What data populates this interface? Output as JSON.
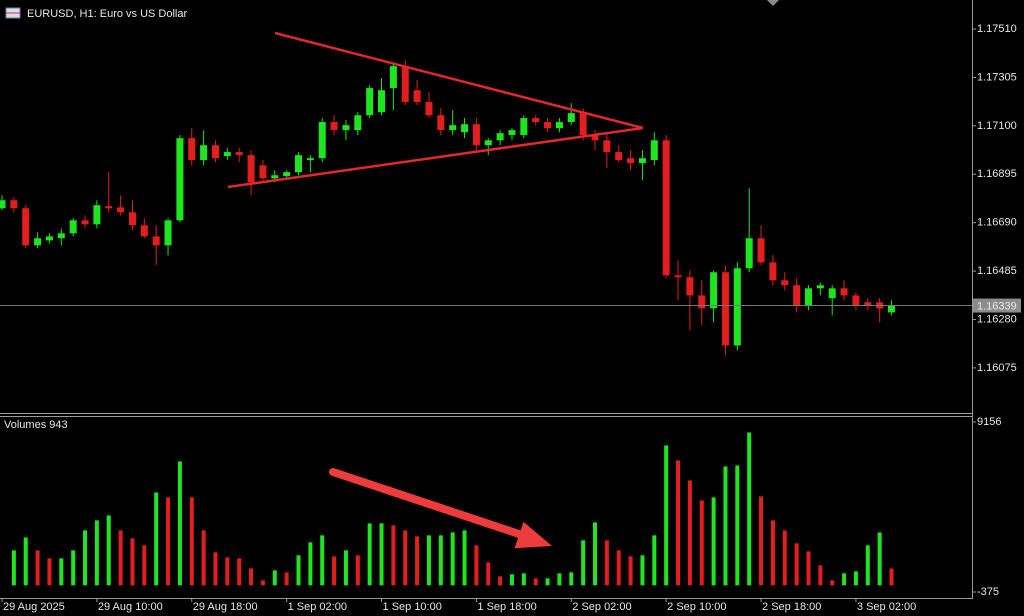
{
  "chart_data": [
    {
      "type": "candlestick",
      "title": "EURUSD, H1:  Euro vs US Dollar",
      "categories": [
        "29 Aug 2025",
        null,
        null,
        null,
        null,
        null,
        null,
        null,
        "29 Aug 10:00",
        null,
        null,
        null,
        null,
        null,
        null,
        null,
        "29 Aug 18:00",
        null,
        null,
        null,
        null,
        null,
        null,
        null,
        "1 Sep 02:00",
        null,
        null,
        null,
        null,
        null,
        null,
        null,
        "1 Sep 10:00",
        null,
        null,
        null,
        null,
        null,
        null,
        null,
        "1 Sep 18:00",
        null,
        null,
        null,
        null,
        null,
        null,
        null,
        "2 Sep 02:00",
        null,
        null,
        null,
        null,
        null,
        null,
        null,
        "2 Sep 10:00",
        null,
        null,
        null,
        null,
        null,
        null,
        null,
        "2 Sep 18:00",
        null,
        null,
        null,
        null,
        null,
        null,
        null,
        "3 Sep 02:00",
        null,
        null,
        null
      ],
      "open": [
        1.16751,
        1.16785,
        1.16751,
        1.16594,
        1.16615,
        1.16624,
        1.16645,
        1.167,
        1.16683,
        1.1676,
        1.16755,
        1.16734,
        1.16679,
        1.16632,
        1.16594,
        1.167,
        1.17048,
        1.16955,
        1.17018,
        1.16972,
        1.16989,
        1.16976,
        1.16933,
        1.16878,
        1.16887,
        1.16904,
        1.16955,
        1.16963,
        1.17116,
        1.17082,
        1.17082,
        1.17145,
        1.17158,
        1.1726,
        1.17353,
        1.17251,
        1.17201,
        1.17145,
        1.17082,
        1.17073,
        1.17107,
        1.17018,
        1.17039,
        1.17061,
        1.17061,
        1.17133,
        1.17116,
        1.1709,
        1.17116,
        1.17154,
        1.17061,
        1.17039,
        1.16989,
        1.16963,
        1.16942,
        1.16955,
        1.17039,
        1.16467,
        1.16459,
        1.16382,
        1.16327,
        1.1648,
        1.1617,
        1.16497,
        1.16624,
        1.16522,
        1.16446,
        1.16425,
        1.1634,
        1.16412,
        1.1637,
        1.16412,
        1.16382,
        1.16353,
        1.16353,
        1.1631
      ],
      "high": [
        1.16806,
        1.16798,
        1.16764,
        1.16649,
        1.16645,
        1.16666,
        1.16709,
        1.16721,
        1.16785,
        1.16904,
        1.16806,
        1.16785,
        1.16709,
        1.16679,
        1.16709,
        1.17061,
        1.1709,
        1.17082,
        1.17039,
        1.17006,
        1.17006,
        1.16997,
        1.16955,
        1.16912,
        1.16912,
        1.16989,
        1.16976,
        1.17133,
        1.17145,
        1.17124,
        1.17158,
        1.17273,
        1.17302,
        1.1737,
        1.17379,
        1.17294,
        1.17243,
        1.17175,
        1.17167,
        1.17133,
        1.17133,
        1.17048,
        1.17082,
        1.1709,
        1.17145,
        1.17145,
        1.17133,
        1.17133,
        1.17196,
        1.17175,
        1.17082,
        1.17073,
        1.17018,
        1.16997,
        1.16997,
        1.17073,
        1.17061,
        1.16531,
        1.16488,
        1.16446,
        1.16488,
        1.16509,
        1.16522,
        1.16836,
        1.16679,
        1.16552,
        1.1648,
        1.16454,
        1.16425,
        1.16437,
        1.16425,
        1.16446,
        1.16395,
        1.1637,
        1.1637,
        1.16361
      ],
      "low": [
        1.16743,
        1.16734,
        1.16582,
        1.16582,
        1.16603,
        1.16594,
        1.16632,
        1.16666,
        1.16666,
        1.16734,
        1.16721,
        1.16658,
        1.16624,
        1.16509,
        1.16552,
        1.16692,
        1.16933,
        1.16933,
        1.16946,
        1.16955,
        1.16946,
        1.16806,
        1.16861,
        1.16861,
        1.1687,
        1.16891,
        1.16904,
        1.16946,
        1.17061,
        1.17039,
        1.17061,
        1.17133,
        1.17145,
        1.17167,
        1.17188,
        1.17188,
        1.17133,
        1.17061,
        1.17061,
        1.17048,
        1.16997,
        1.16976,
        1.17018,
        1.17039,
        1.17048,
        1.17103,
        1.17073,
        1.17073,
        1.17103,
        1.17039,
        1.16997,
        1.16921,
        1.16946,
        1.16912,
        1.1687,
        1.16933,
        1.16454,
        1.16361,
        1.16234,
        1.16255,
        1.16268,
        1.16128,
        1.16149,
        1.1648,
        1.16509,
        1.16425,
        1.16403,
        1.1631,
        1.16319,
        1.16382,
        1.16297,
        1.16361,
        1.16319,
        1.16319,
        1.16268,
        1.16297
      ],
      "close": [
        1.16785,
        1.16751,
        1.16594,
        1.16624,
        1.16632,
        1.16645,
        1.167,
        1.16683,
        1.16764,
        1.16751,
        1.16734,
        1.16679,
        1.16632,
        1.16594,
        1.167,
        1.17048,
        1.16955,
        1.17018,
        1.16963,
        1.16989,
        1.16976,
        1.16861,
        1.16878,
        1.16891,
        1.16904,
        1.16976,
        1.16963,
        1.17116,
        1.17082,
        1.17103,
        1.17145,
        1.1726,
        1.17251,
        1.17353,
        1.17201,
        1.17201,
        1.17145,
        1.17082,
        1.17103,
        1.17107,
        1.17018,
        1.17039,
        1.17069,
        1.17082,
        1.17133,
        1.17116,
        1.1709,
        1.17116,
        1.17154,
        1.17061,
        1.17039,
        1.16989,
        1.16955,
        1.16942,
        1.16963,
        1.17039,
        1.16467,
        1.16459,
        1.16382,
        1.16327,
        1.1648,
        1.1617,
        1.16497,
        1.16624,
        1.16522,
        1.16446,
        1.16425,
        1.1634,
        1.16412,
        1.16425,
        1.16412,
        1.16382,
        1.1634,
        1.1634,
        1.16327,
        1.16339
      ],
      "up_color": "#1ee61e",
      "down_color": "#e41e1e",
      "last_price": 1.16339,
      "ylim": [
        1.15884,
        1.17633
      ],
      "yticks": [
        {
          "value": 1.1751,
          "label": "1.17510"
        },
        1.17305,
        {
          "value": 1.171,
          "label": "1.17100"
        },
        1.16895,
        {
          "value": 1.1669,
          "label": "1.16690"
        },
        1.16485,
        {
          "value": 1.1628,
          "label": "1.16280"
        },
        1.16075
      ]
    },
    {
      "type": "bar",
      "title": "Volumes 943",
      "values": [
        null,
        1960,
        2688,
        1960,
        1512,
        1512,
        1960,
        3080,
        3640,
        3920,
        3080,
        2632,
        2240,
        5208,
        4928,
        6944,
        4928,
        3080,
        1848,
        1568,
        1512,
        952,
        280,
        840,
        728,
        1680,
        2408,
        2800,
        1624,
        1960,
        1680,
        3472,
        3472,
        3360,
        3080,
        2744,
        2800,
        2800,
        2968,
        3080,
        2240,
        1288,
        504,
        616,
        672,
        392,
        392,
        672,
        728,
        2520,
        3528,
        2520,
        1960,
        1624,
        1680,
        2800,
        7840,
        7000,
        5880,
        4760,
        4928,
        6664,
        6720,
        8568,
        4984,
        3640,
        3080,
        2352,
        1904,
        1120,
        280,
        672,
        784,
        2240,
        2968,
        943
      ],
      "up_color": "#1ee61e",
      "down_color": "#e41e1e",
      "ylim": [
        -711,
        9492
      ],
      "yticks": [
        9156,
        -375
      ]
    }
  ]
}
